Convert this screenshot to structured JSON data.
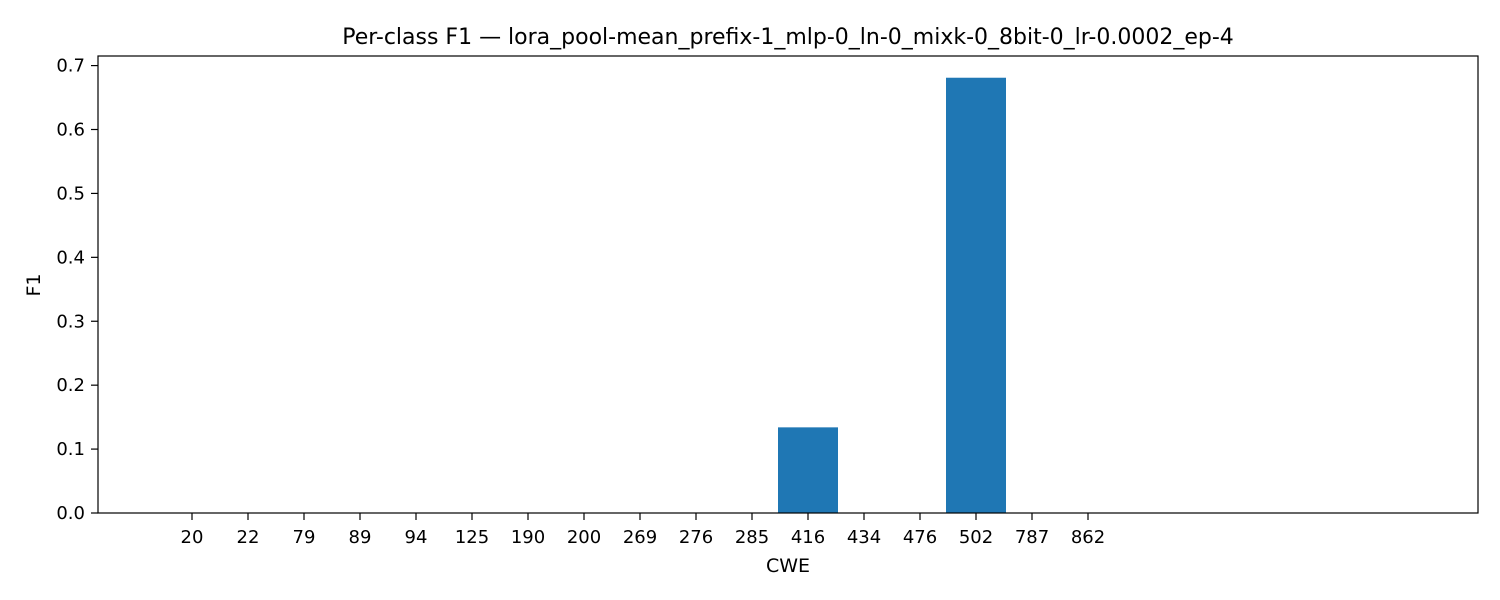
{
  "chart_data": {
    "type": "bar",
    "title": "Per-class F1 — lora_pool-mean_prefix-1_mlp-0_ln-0_mixk-0_8bit-0_lr-0.0002_ep-4",
    "xlabel": "CWE",
    "ylabel": "F1",
    "categories": [
      "20",
      "22",
      "79",
      "89",
      "94",
      "125",
      "190",
      "200",
      "269",
      "276",
      "285",
      "416",
      "434",
      "476",
      "502",
      "787",
      "862"
    ],
    "values": [
      0,
      0,
      0,
      0,
      0,
      0,
      0,
      0,
      0,
      0,
      0,
      0.134,
      0,
      0,
      0.681,
      0,
      0
    ],
    "ylim": [
      0,
      0.715
    ],
    "yticks": [
      "0.0",
      "0.1",
      "0.2",
      "0.3",
      "0.4",
      "0.5",
      "0.6",
      "0.7"
    ],
    "bar_color": "#1f77b4",
    "grid": false
  }
}
